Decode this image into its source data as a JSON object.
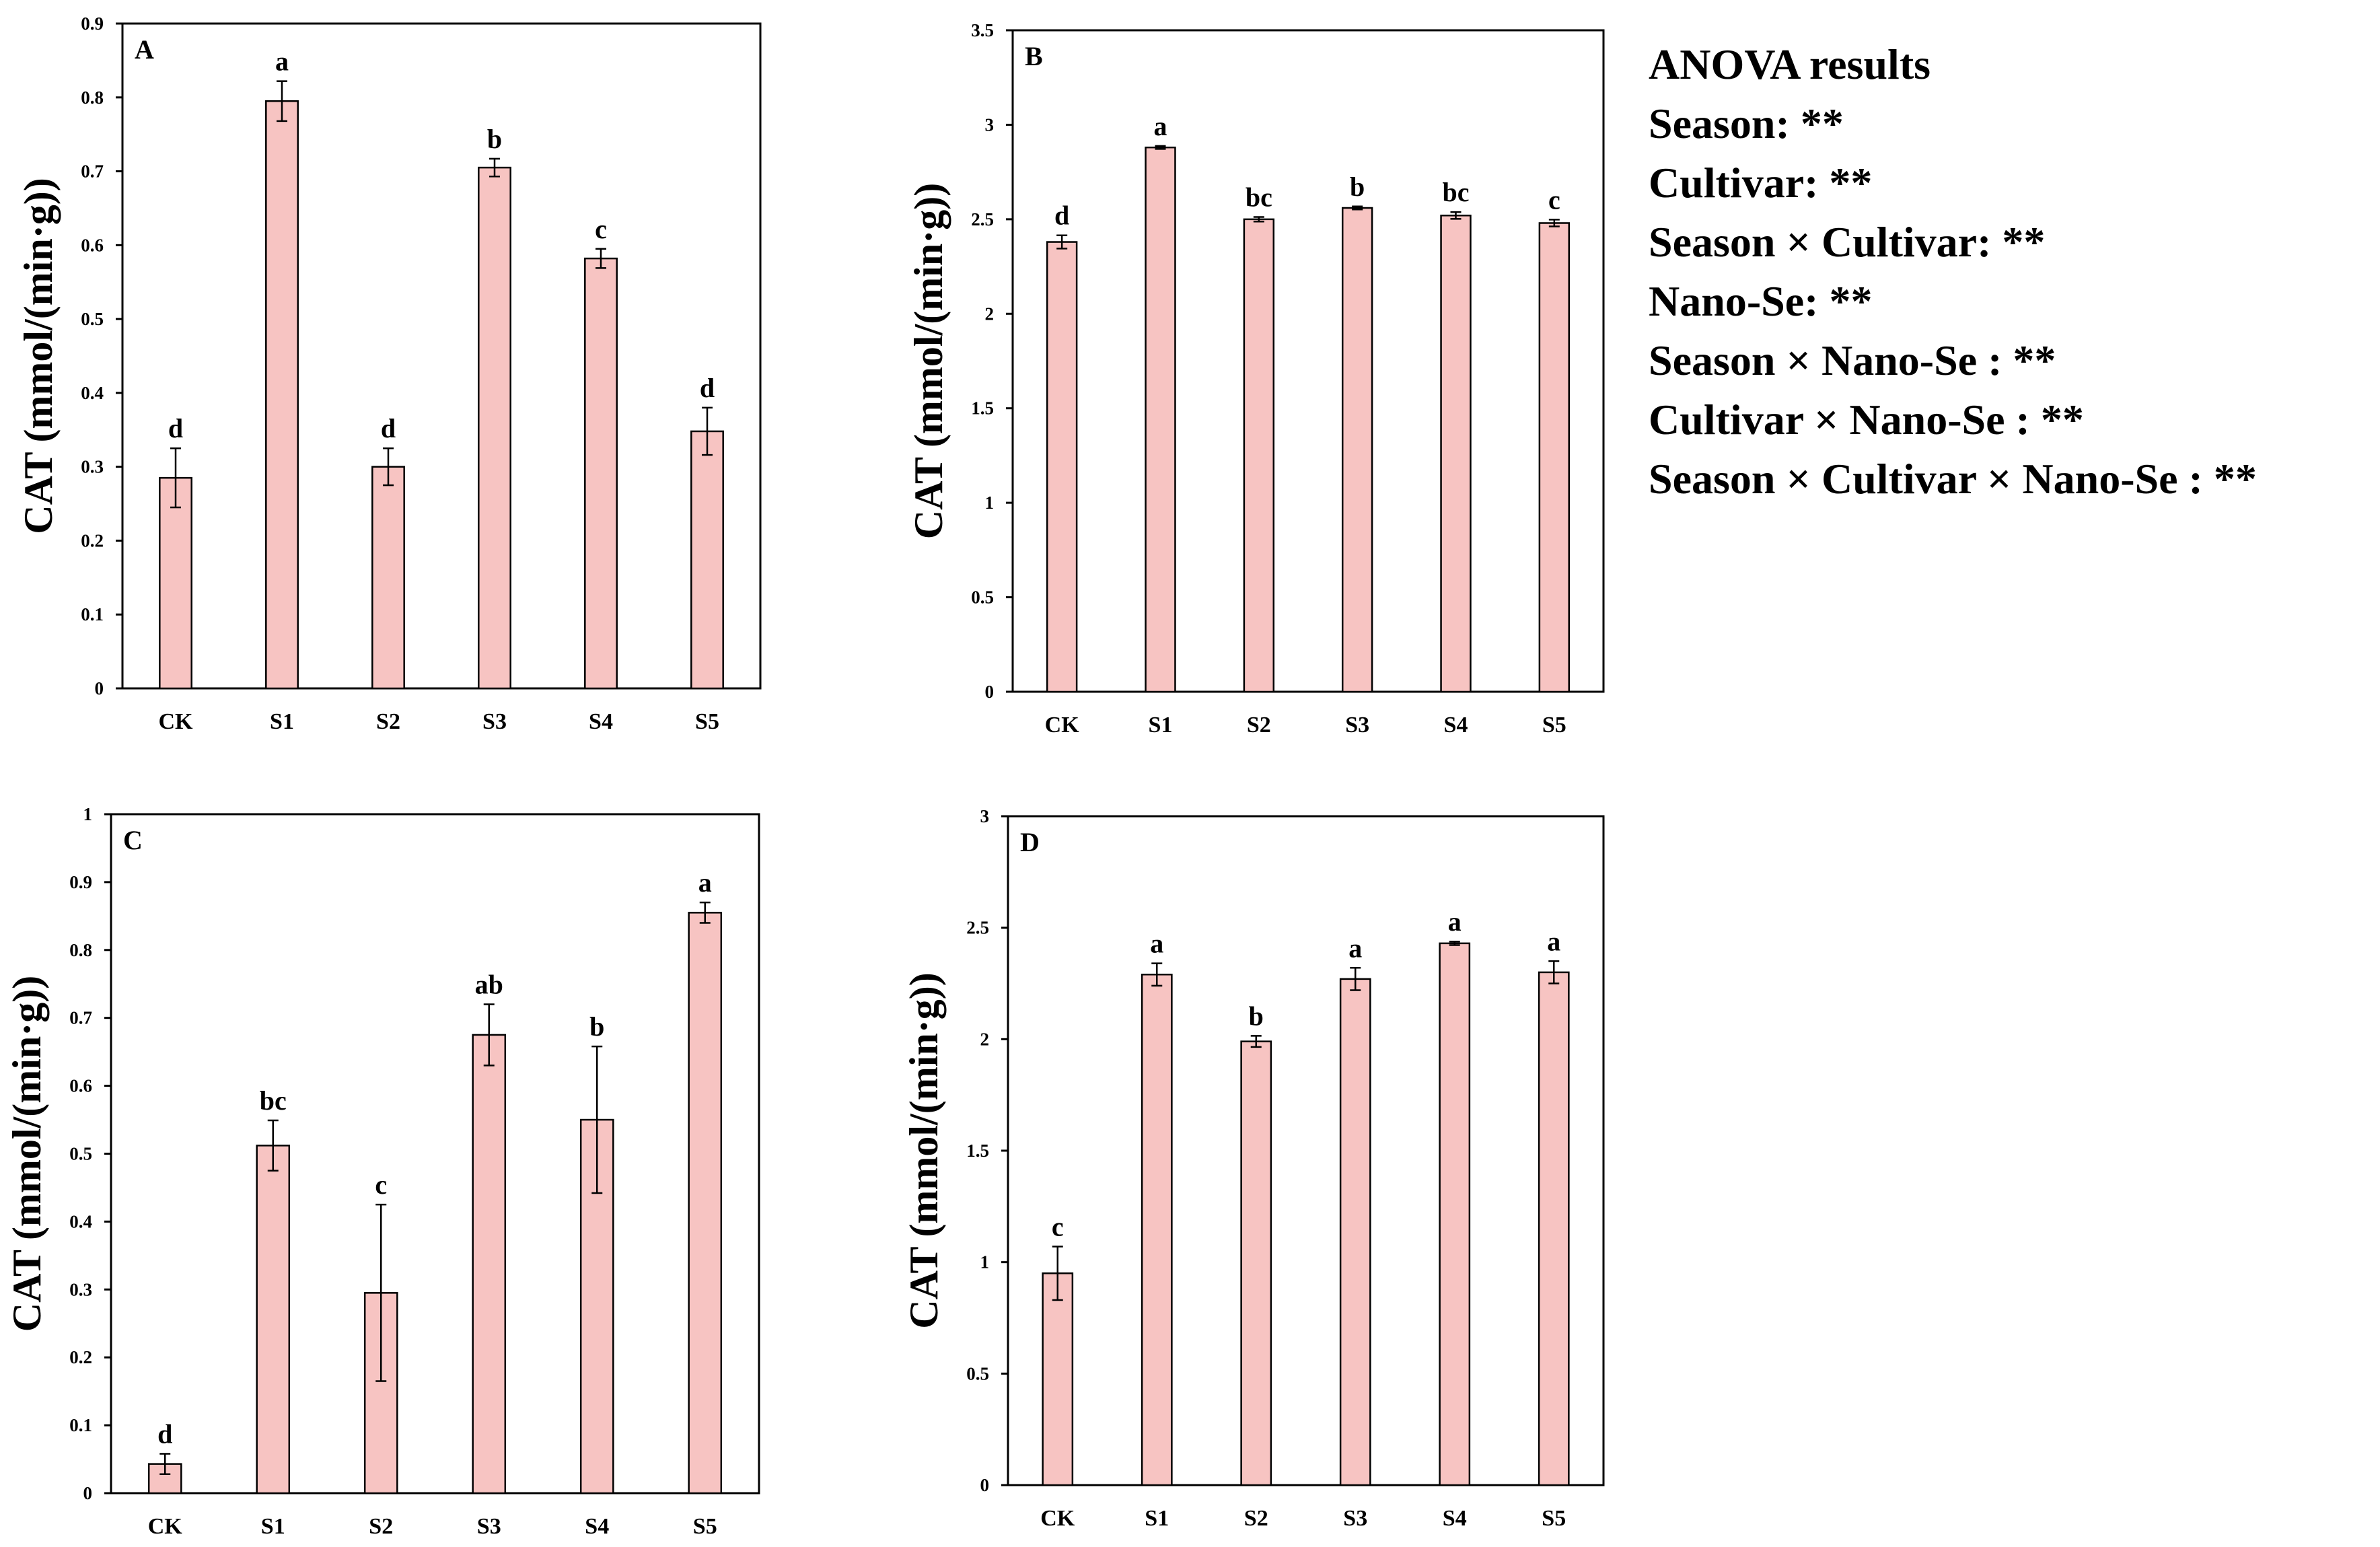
{
  "colors": {
    "bar_fill": "#f7c4c2",
    "bar_stroke": "#000000",
    "axis": "#000000",
    "background": "#ffffff"
  },
  "anova": {
    "title": "ANOVA results",
    "lines": [
      "Season: **",
      "Cultivar: **",
      "Season × Cultivar: **",
      "Nano-Se: **",
      "Season × Nano-Se : **",
      "Cultivar × Nano-Se : **",
      "Season × Cultivar × Nano-Se : **"
    ]
  },
  "chart_data": [
    {
      "type": "bar",
      "panel": "A",
      "ylabel": "CAT (mmol/(min·g))",
      "categories": [
        "CK",
        "S1",
        "S2",
        "S3",
        "S4",
        "S5"
      ],
      "values": [
        0.285,
        0.795,
        0.3,
        0.705,
        0.582,
        0.348
      ],
      "errors": [
        0.04,
        0.027,
        0.025,
        0.012,
        0.013,
        0.032
      ],
      "letters": [
        "d",
        "a",
        "d",
        "b",
        "c",
        "d"
      ],
      "ylim": [
        0,
        0.9
      ],
      "yticks": [
        0,
        0.1,
        0.2,
        0.3,
        0.4,
        0.5,
        0.6,
        0.7,
        0.8,
        0.9
      ],
      "ytick_labels": [
        "0",
        "0.1",
        "0.2",
        "0.3",
        "0.4",
        "0.5",
        "0.6",
        "0.7",
        "0.8",
        "0.9"
      ]
    },
    {
      "type": "bar",
      "panel": "B",
      "ylabel": "CAT (mmol/(min·g))",
      "categories": [
        "CK",
        "S1",
        "S2",
        "S3",
        "S4",
        "S5"
      ],
      "values": [
        2.38,
        2.88,
        2.5,
        2.56,
        2.52,
        2.48
      ],
      "errors": [
        0.035,
        0.008,
        0.012,
        0.008,
        0.018,
        0.018
      ],
      "letters": [
        "d",
        "a",
        "bc",
        "b",
        "bc",
        "c"
      ],
      "ylim": [
        0,
        3.5
      ],
      "yticks": [
        0,
        0.5,
        1,
        1.5,
        2,
        2.5,
        3,
        3.5
      ],
      "ytick_labels": [
        "0",
        "0.5",
        "1",
        "1.5",
        "2",
        "2.5",
        "3",
        "3.5"
      ]
    },
    {
      "type": "bar",
      "panel": "C",
      "ylabel": "CAT (mmol/(min·g))",
      "categories": [
        "CK",
        "S1",
        "S2",
        "S3",
        "S4",
        "S5"
      ],
      "values": [
        0.043,
        0.512,
        0.295,
        0.675,
        0.55,
        0.855
      ],
      "errors": [
        0.015,
        0.037,
        0.13,
        0.045,
        0.108,
        0.015
      ],
      "letters": [
        "d",
        "bc",
        "c",
        "ab",
        "b",
        "a"
      ],
      "ylim": [
        0,
        1
      ],
      "yticks": [
        0,
        0.1,
        0.2,
        0.3,
        0.4,
        0.5,
        0.6,
        0.7,
        0.8,
        0.9,
        1
      ],
      "ytick_labels": [
        "0",
        "0.1",
        "0.2",
        "0.3",
        "0.4",
        "0.5",
        "0.6",
        "0.7",
        "0.8",
        "0.9",
        "1"
      ]
    },
    {
      "type": "bar",
      "panel": "D",
      "ylabel": "CAT (mmol/(min·g))",
      "categories": [
        "CK",
        "S1",
        "S2",
        "S3",
        "S4",
        "S5"
      ],
      "values": [
        0.95,
        2.29,
        1.99,
        2.27,
        2.43,
        2.3
      ],
      "errors": [
        0.12,
        0.05,
        0.025,
        0.05,
        0.008,
        0.05
      ],
      "letters": [
        "c",
        "a",
        "b",
        "a",
        "a",
        "a"
      ],
      "ylim": [
        0,
        3
      ],
      "yticks": [
        0,
        0.5,
        1,
        1.5,
        2,
        2.5,
        3
      ],
      "ytick_labels": [
        "0",
        "0.5",
        "1",
        "1.5",
        "2",
        "2.5",
        "3"
      ]
    }
  ]
}
